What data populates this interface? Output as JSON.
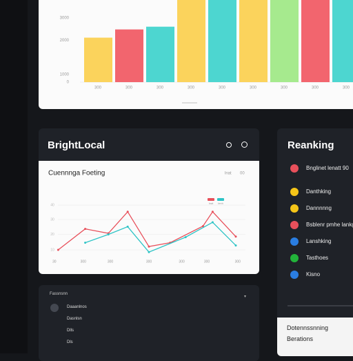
{
  "bar_chart": {
    "type": "bar",
    "categories": [
      "300",
      "300",
      "300",
      "300",
      "300",
      "300",
      "300",
      "300",
      "300"
    ],
    "values": [
      65,
      77,
      81,
      120,
      120,
      120,
      120,
      120,
      120
    ],
    "colors": [
      "#fbd35c",
      "#f2656e",
      "#4dd6d0",
      "#fbd35c",
      "#4dd6d0",
      "#fbd35c",
      "#a6ea8e",
      "#f2656e",
      "#4dd6d0"
    ],
    "ylim": [
      0,
      120
    ],
    "yticks": [
      {
        "value": 94,
        "label": "3000"
      },
      {
        "value": 61,
        "label": "2000"
      },
      {
        "value": 11,
        "label": "1000"
      },
      0
    ]
  },
  "brand_panel": {
    "title": "BrightLocal"
  },
  "line_chart": {
    "type": "line",
    "title": "Cuennnga Foeting",
    "header_labels": [
      "lnat",
      "00"
    ],
    "xlim": [
      0,
      100
    ],
    "ylim": [
      0,
      100
    ],
    "xticks": [
      {
        "value": 1,
        "label": "30"
      },
      {
        "value": 16,
        "label": "300"
      },
      {
        "value": 30,
        "label": "300"
      },
      {
        "value": 50,
        "label": "300"
      },
      {
        "value": 67,
        "label": "300"
      },
      {
        "value": 80,
        "label": "300"
      },
      {
        "value": 96,
        "label": "300"
      }
    ],
    "yticks": [
      {
        "value": 91,
        "label": "40"
      },
      {
        "value": 65,
        "label": "30"
      },
      {
        "value": 38,
        "label": "20"
      },
      {
        "value": 10,
        "label": "10"
      }
    ],
    "series": [
      {
        "name": "Inat",
        "color": "#e8505b",
        "x": [
          3,
          17,
          29,
          39,
          50,
          61,
          78,
          83,
          95
        ],
        "values": [
          10,
          48,
          40,
          79,
          16,
          23,
          53,
          79,
          34
        ]
      },
      {
        "name": "Ienh",
        "color": "#2ec4c6",
        "x": [
          17,
          29,
          39,
          50,
          69,
          83,
          95
        ],
        "values": [
          23,
          38,
          52,
          6,
          33,
          60,
          18
        ]
      }
    ]
  },
  "ranking": {
    "title": "Reanking",
    "items": [
      {
        "label": "Bnglinet lenatt 90",
        "color": "#e8505b"
      },
      {
        "label": "Danthking",
        "color": "#f5c518"
      },
      {
        "label": "Dannnnng",
        "color": "#f5c518"
      },
      {
        "label": "Bsblenr pmhe lankg",
        "color": "#e8505b"
      },
      {
        "label": "Lanshking",
        "color": "#2a7de1"
      },
      {
        "label": "Tasthoes",
        "color": "#22b33a"
      },
      {
        "label": "Kisno",
        "color": "#2a7de1"
      }
    ],
    "footer": {
      "title": "Dotennssnning",
      "subtitle": "Berations"
    }
  },
  "bottom_panel": {
    "header": "Fassnsnn",
    "items": [
      "Daaanlnos",
      "Dasnlsn",
      "Dlls",
      "Dls"
    ]
  }
}
